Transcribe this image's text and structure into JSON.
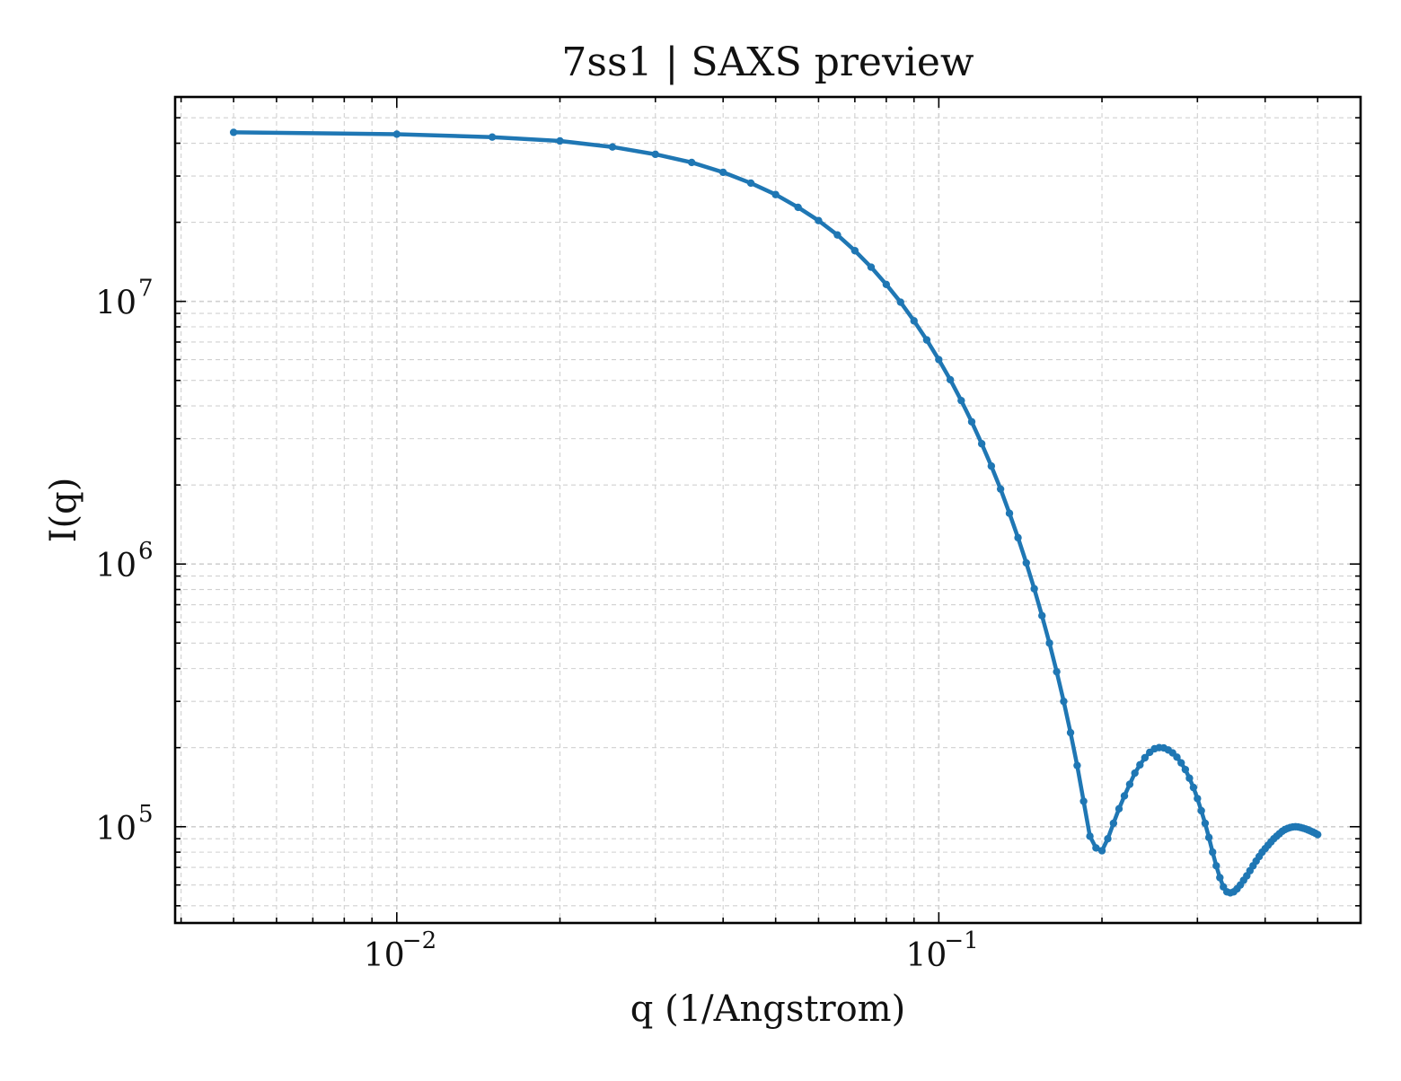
{
  "chart_data": {
    "type": "line",
    "title": "7ss1 | SAXS preview",
    "xlabel": "q (1/Angstrom)",
    "ylabel": "I(q)",
    "xscale": "log",
    "yscale": "log",
    "xlim": [
      0.0039,
      0.6
    ],
    "ylim": [
      43000,
      60000000
    ],
    "grid": true,
    "legend": "none",
    "line_color": "#1f77b4",
    "x_ticks": [
      {
        "value": 0.01,
        "base": "10",
        "exp": "−2"
      },
      {
        "value": 0.1,
        "base": "10",
        "exp": "−1"
      }
    ],
    "y_ticks": [
      {
        "value": 100000,
        "base": "10",
        "exp": "5"
      },
      {
        "value": 1000000,
        "base": "10",
        "exp": "6"
      },
      {
        "value": 10000000,
        "base": "10",
        "exp": "7"
      }
    ],
    "series": [
      {
        "x": [
          0.005,
          0.01,
          0.015,
          0.02,
          0.025,
          0.03,
          0.035,
          0.04,
          0.045,
          0.05,
          0.055,
          0.06,
          0.065,
          0.07,
          0.075,
          0.08,
          0.085,
          0.09,
          0.095,
          0.1,
          0.105,
          0.11,
          0.115,
          0.12,
          0.125,
          0.13,
          0.135,
          0.14,
          0.145,
          0.15,
          0.155,
          0.16,
          0.165,
          0.17,
          0.175,
          0.18,
          0.185,
          0.19,
          0.195,
          0.2,
          0.205,
          0.21,
          0.215,
          0.22,
          0.225,
          0.23,
          0.235,
          0.24,
          0.245,
          0.25,
          0.255,
          0.26,
          0.265,
          0.27,
          0.275,
          0.28,
          0.285,
          0.29,
          0.295,
          0.3,
          0.305,
          0.31,
          0.315,
          0.32,
          0.325,
          0.33,
          0.335,
          0.34,
          0.345,
          0.35,
          0.355,
          0.36,
          0.365,
          0.37,
          0.375,
          0.38,
          0.385,
          0.39,
          0.395,
          0.4,
          0.405,
          0.41,
          0.415,
          0.42,
          0.425,
          0.43,
          0.435,
          0.44,
          0.445,
          0.45,
          0.455,
          0.46,
          0.465,
          0.47,
          0.475,
          0.48,
          0.485,
          0.49,
          0.495,
          0.5
        ],
        "y": [
          44000000,
          43300000,
          42200000,
          40800000,
          38700000,
          36300000,
          33800000,
          31000000,
          28200000,
          25500000,
          22800000,
          20300000,
          17900000,
          15600000,
          13500000,
          11600000,
          9930000,
          8430000,
          7130000,
          6000000,
          5030000,
          4190000,
          3480000,
          2870000,
          2360000,
          1930000,
          1560000,
          1260000,
          1010000,
          805000,
          636000,
          500000,
          389000,
          300000,
          228000,
          171000,
          125000,
          92000,
          83000,
          81000,
          90000,
          103000,
          117000,
          131000,
          145000,
          160000,
          172000,
          183000,
          192000,
          198000,
          200000,
          199500,
          196000,
          191000,
          184000,
          175000,
          165000,
          153000,
          141000,
          128000,
          115000,
          103000,
          91000,
          80000,
          71000,
          64000,
          59000,
          56500,
          56000,
          56500,
          58000,
          60000,
          62500,
          65000,
          68000,
          71000,
          74000,
          77000,
          80000,
          82500,
          85000,
          87500,
          90000,
          92000,
          94000,
          96000,
          97500,
          98500,
          99300,
          99800,
          100000,
          99800,
          99300,
          98700,
          98000,
          97200,
          96300,
          95400,
          94400,
          93300
        ]
      }
    ]
  }
}
